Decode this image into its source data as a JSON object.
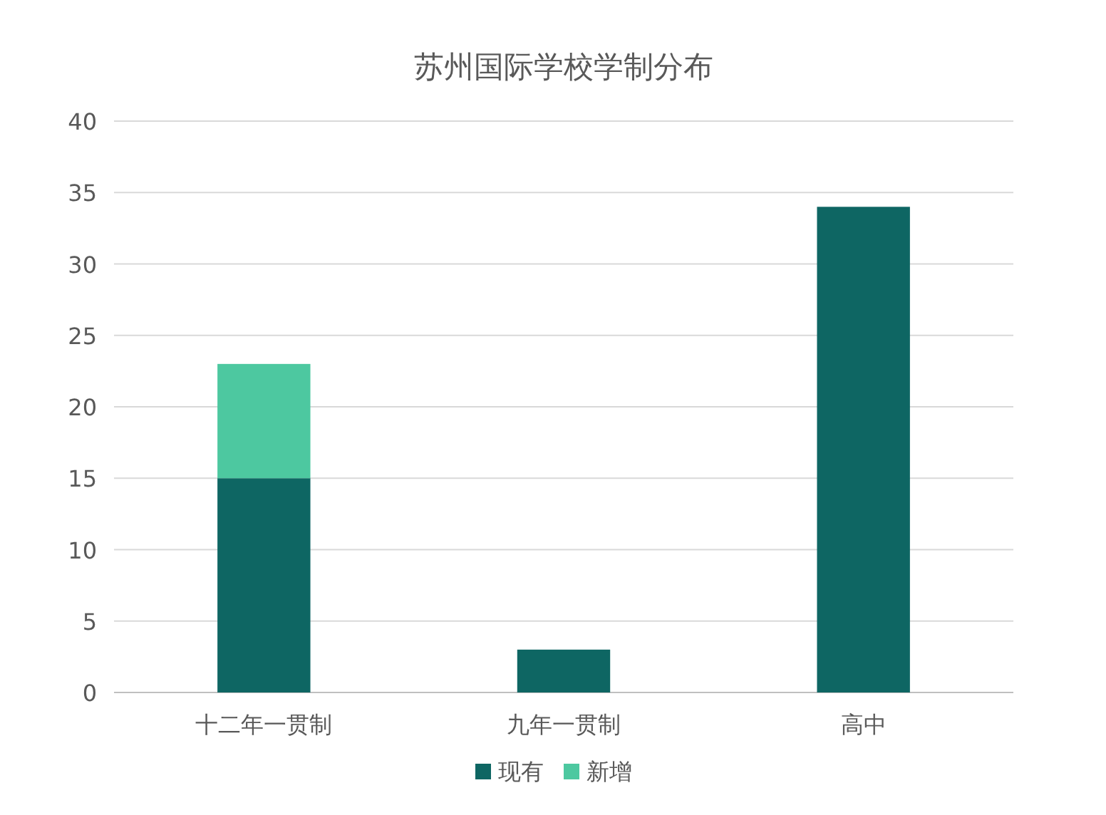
{
  "chart_data": {
    "type": "bar",
    "title": "苏州国际学校学制分布",
    "categories": [
      "十二年一贯制",
      "九年一贯制",
      "高中"
    ],
    "stacked": true,
    "series": [
      {
        "name": "现有",
        "color": "#0e6663",
        "values": [
          15,
          3,
          34
        ]
      },
      {
        "name": "新增",
        "color": "#4dc8a0",
        "values": [
          8,
          null,
          null
        ]
      }
    ],
    "ylim": [
      0,
      40
    ],
    "yticks": [
      0,
      5,
      10,
      15,
      20,
      25,
      30,
      35,
      40
    ],
    "grid": "y",
    "legend": "bottom"
  }
}
